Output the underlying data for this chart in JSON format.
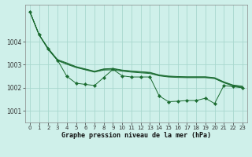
{
  "xlabel": "Graphe pression niveau de la mer (hPa)",
  "background_color": "#cff0ea",
  "grid_color": "#a8d8ce",
  "line_color": "#1a6b30",
  "xlim": [
    -0.5,
    23.5
  ],
  "ylim": [
    1000.5,
    1005.6
  ],
  "yticks": [
    1001,
    1002,
    1003,
    1004
  ],
  "xticks": [
    0,
    1,
    2,
    3,
    4,
    5,
    6,
    7,
    8,
    9,
    10,
    11,
    12,
    13,
    14,
    15,
    16,
    17,
    18,
    19,
    20,
    21,
    22,
    23
  ],
  "smooth1": [
    1005.3,
    1004.3,
    1003.65,
    1003.18,
    1003.02,
    1002.88,
    1002.78,
    1002.68,
    1002.77,
    1002.78,
    1002.72,
    1002.68,
    1002.65,
    1002.62,
    1002.52,
    1002.47,
    1002.45,
    1002.44,
    1002.44,
    1002.44,
    1002.4,
    1002.22,
    1002.08,
    1002.02
  ],
  "smooth2": [
    1005.3,
    1004.3,
    1003.68,
    1003.2,
    1003.05,
    1002.9,
    1002.8,
    1002.7,
    1002.8,
    1002.82,
    1002.75,
    1002.71,
    1002.68,
    1002.65,
    1002.54,
    1002.49,
    1002.47,
    1002.46,
    1002.46,
    1002.46,
    1002.42,
    1002.24,
    1002.1,
    1002.05
  ],
  "smooth3": [
    1005.3,
    1004.3,
    1003.7,
    1003.22,
    1003.08,
    1002.92,
    1002.82,
    1002.72,
    1002.82,
    1002.84,
    1002.77,
    1002.73,
    1002.7,
    1002.67,
    1002.56,
    1002.51,
    1002.49,
    1002.48,
    1002.48,
    1002.48,
    1002.44,
    1002.26,
    1002.12,
    1002.07
  ],
  "marked": [
    1005.3,
    1004.3,
    1003.7,
    1003.2,
    1002.5,
    1002.2,
    1002.15,
    1002.1,
    1002.45,
    1002.8,
    1002.52,
    1002.47,
    1002.47,
    1002.47,
    1001.65,
    1001.4,
    1001.42,
    1001.45,
    1001.45,
    1001.55,
    1001.32,
    1002.1,
    1002.05,
    1002.0
  ]
}
